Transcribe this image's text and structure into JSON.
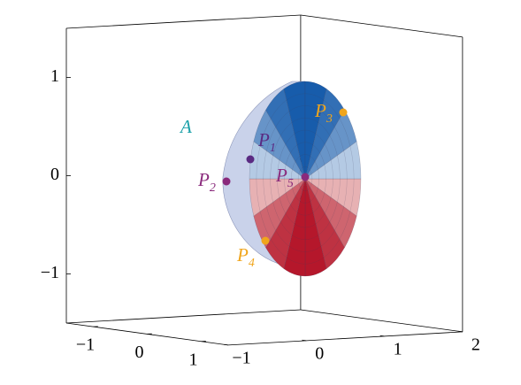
{
  "chart_data": {
    "type": "surface3d",
    "xlim": [
      -1.5,
      1.5
    ],
    "xticks": [
      {
        "value": -1,
        "label": "−1"
      },
      0,
      1
    ],
    "ylim": [
      -1,
      2
    ],
    "yticks": [
      {
        "value": -1,
        "label": "−1"
      },
      0,
      1,
      2
    ],
    "zlim": [
      -1.5,
      1.5
    ],
    "zticks": [
      {
        "value": -1,
        "label": "−1"
      },
      0,
      1
    ],
    "annotations": [
      {
        "text": "A",
        "color": "#1aa0a8"
      }
    ],
    "points": [
      {
        "name": "P",
        "sub": "1",
        "color": "#5a2a82"
      },
      {
        "name": "P",
        "sub": "2",
        "color": "#8a2a7c"
      },
      {
        "name": "P",
        "sub": "3",
        "color": "#f0a51c"
      },
      {
        "name": "P",
        "sub": "4",
        "color": "#f0a51c"
      },
      {
        "name": "P",
        "sub": "5",
        "color": "#8a2a7c"
      }
    ]
  }
}
